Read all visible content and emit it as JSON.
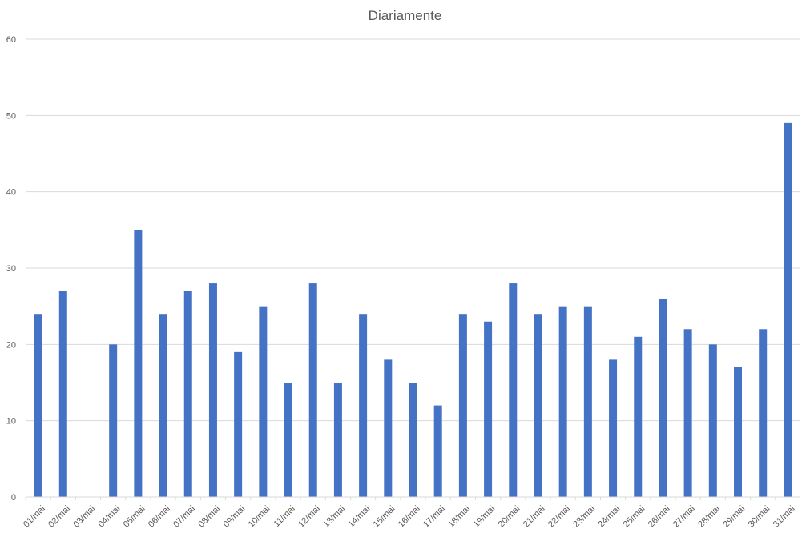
{
  "chart_data": {
    "type": "bar",
    "title": "Diariamente",
    "xlabel": "",
    "ylabel": "",
    "ylim": [
      0,
      60
    ],
    "yticks": [
      0,
      10,
      20,
      30,
      40,
      50,
      60
    ],
    "grid": true,
    "legend": "none",
    "bar_color": "#4472C4",
    "grid_color": "#D9D9D9",
    "categories": [
      "01/mai",
      "02/mai",
      "03/mai",
      "04/mai",
      "05/mai",
      "06/mai",
      "07/mai",
      "08/mai",
      "09/mai",
      "10/mai",
      "11/mai",
      "12/mai",
      "13/mai",
      "14/mai",
      "15/mai",
      "16/mai",
      "17/mai",
      "18/mai",
      "19/mai",
      "20/mai",
      "21/mai",
      "22/mai",
      "23/mai",
      "24/mai",
      "25/mai",
      "26/mai",
      "27/mai",
      "28/mai",
      "29/mai",
      "30/mai",
      "31/mai"
    ],
    "values": [
      24,
      27,
      0,
      20,
      35,
      24,
      27,
      28,
      19,
      25,
      15,
      28,
      15,
      24,
      18,
      15,
      12,
      24,
      23,
      28,
      24,
      25,
      25,
      18,
      21,
      26,
      22,
      20,
      17,
      22,
      49
    ]
  }
}
